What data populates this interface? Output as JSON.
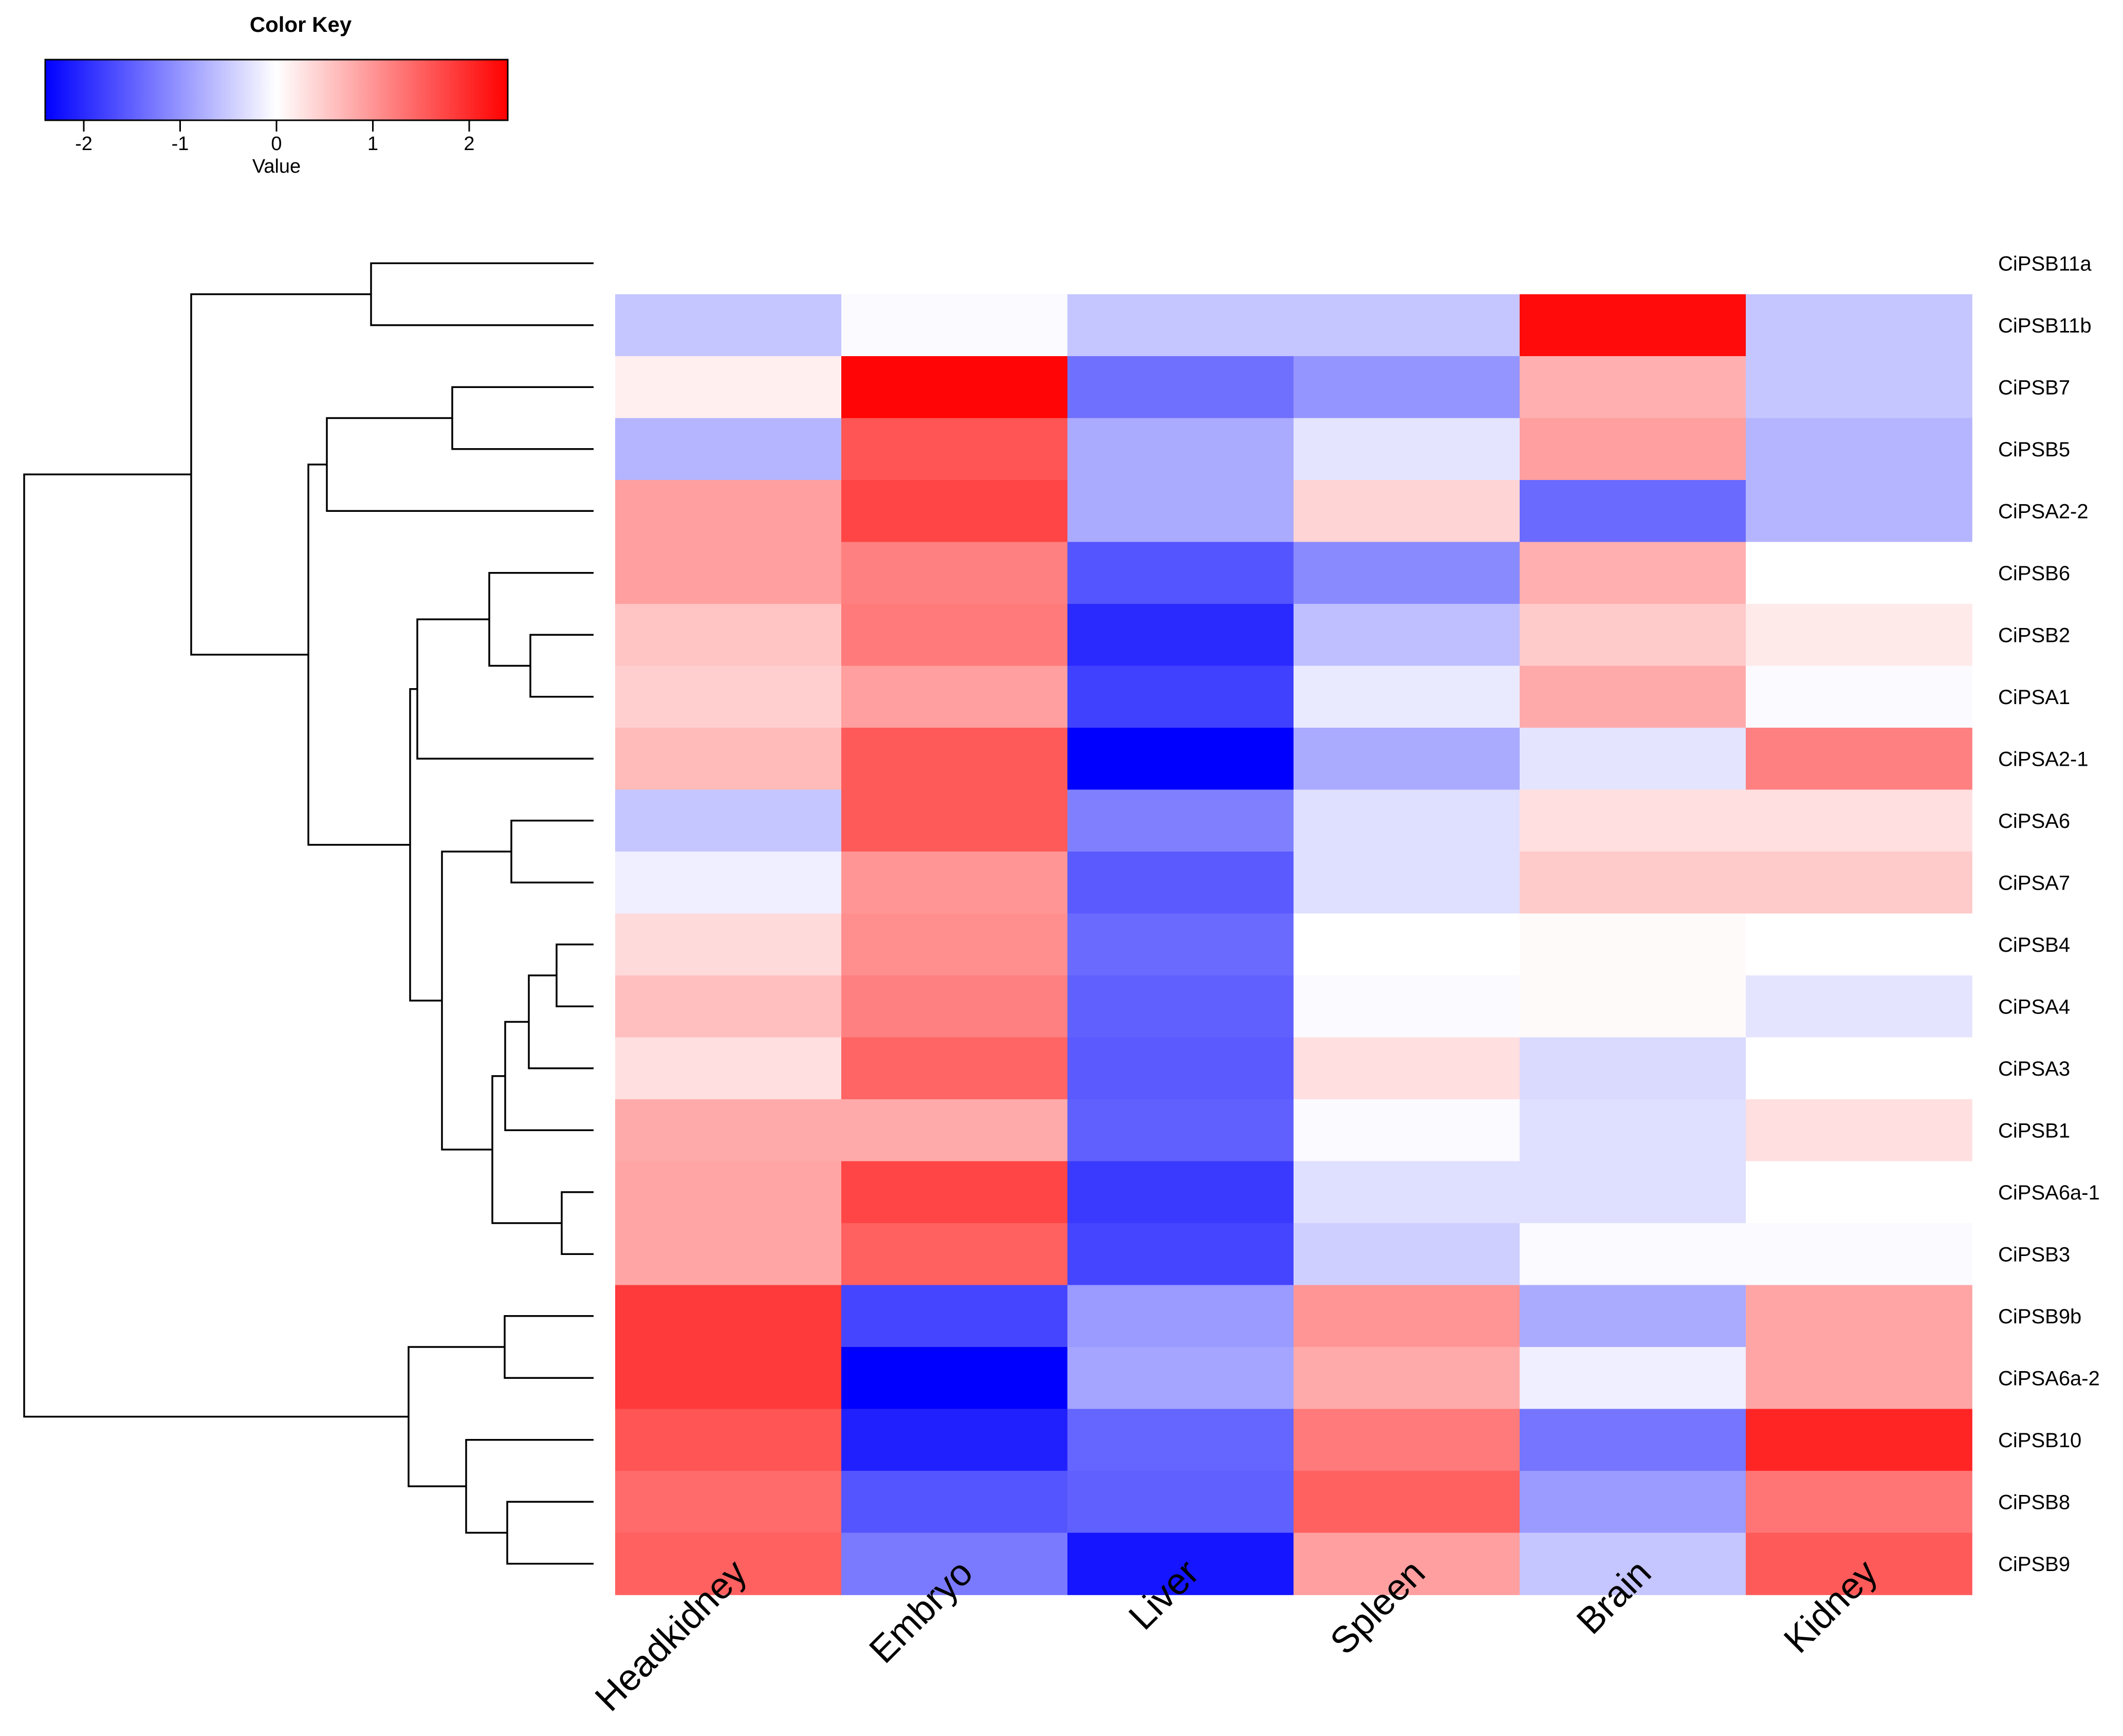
{
  "chart_data": {
    "type": "heatmap",
    "color_key": {
      "title": "Color Key",
      "label": "Value",
      "range": [
        -2.4,
        2.4
      ],
      "ticks": [
        "-2",
        "-1",
        "0",
        "1",
        "2"
      ],
      "tick_values": [
        -2,
        -1,
        0,
        1,
        2
      ],
      "colors": {
        "low": "#0000ff",
        "mid": "#ffffff",
        "high": "#ff0000"
      }
    },
    "columns": [
      "Headkidney",
      "Embryo",
      "Liver",
      "Spleen",
      "Brain",
      "Kidney"
    ],
    "rows": [
      "CiPSB11a",
      "CiPSB11b",
      "CiPSB7",
      "CiPSB5",
      "CiPSA2-2",
      "CiPSB6",
      "CiPSB2",
      "CiPSA1",
      "CiPSA2-1",
      "CiPSA6",
      "CiPSA7",
      "CiPSB4",
      "CiPSA4",
      "CiPSA3",
      "CiPSB1",
      "CiPSA6a-1",
      "CiPSB3",
      "CiPSB9b",
      "CiPSA6a-2",
      "CiPSB10",
      "CiPSB8",
      "CiPSB9"
    ],
    "values": [
      [
        null,
        null,
        null,
        null,
        null,
        null
      ],
      [
        -0.55,
        -0.05,
        -0.55,
        -0.55,
        2.3,
        -0.55
      ],
      [
        0.15,
        2.35,
        -1.35,
        -1.0,
        0.75,
        -0.55
      ],
      [
        -0.7,
        1.6,
        -0.8,
        -0.25,
        0.9,
        -0.7
      ],
      [
        0.9,
        1.75,
        -0.8,
        0.4,
        -1.4,
        -0.7
      ],
      [
        0.9,
        1.2,
        -1.6,
        -1.1,
        0.75,
        0.0
      ],
      [
        0.55,
        1.25,
        -2.0,
        -0.6,
        0.5,
        0.2
      ],
      [
        0.45,
        0.9,
        -1.8,
        -0.2,
        0.8,
        -0.05
      ],
      [
        0.65,
        1.55,
        -2.4,
        -0.8,
        -0.25,
        1.2
      ],
      [
        -0.55,
        1.55,
        -1.2,
        -0.3,
        0.3,
        0.3
      ],
      [
        -0.15,
        1.0,
        -1.55,
        -0.3,
        0.5,
        0.5
      ],
      [
        0.35,
        1.05,
        -1.4,
        0.0,
        0.05,
        0.0
      ],
      [
        0.6,
        1.2,
        -1.5,
        -0.05,
        0.05,
        -0.25
      ],
      [
        0.3,
        1.45,
        -1.55,
        0.3,
        -0.35,
        0.0
      ],
      [
        0.8,
        0.8,
        -1.5,
        -0.05,
        -0.3,
        0.3
      ],
      [
        0.85,
        1.75,
        -1.85,
        -0.3,
        -0.3,
        0.0
      ],
      [
        0.85,
        1.5,
        -1.75,
        -0.45,
        -0.05,
        -0.05
      ],
      [
        1.85,
        -1.75,
        -0.95,
        1.0,
        -0.8,
        0.85
      ],
      [
        1.85,
        -2.4,
        -0.85,
        0.8,
        -0.15,
        0.85
      ],
      [
        1.6,
        -2.1,
        -1.45,
        1.25,
        -1.3,
        2.05
      ],
      [
        1.4,
        -1.6,
        -1.5,
        1.5,
        -0.95,
        1.3
      ],
      [
        1.5,
        -1.25,
        -2.2,
        0.9,
        -0.55,
        1.55
      ]
    ]
  }
}
